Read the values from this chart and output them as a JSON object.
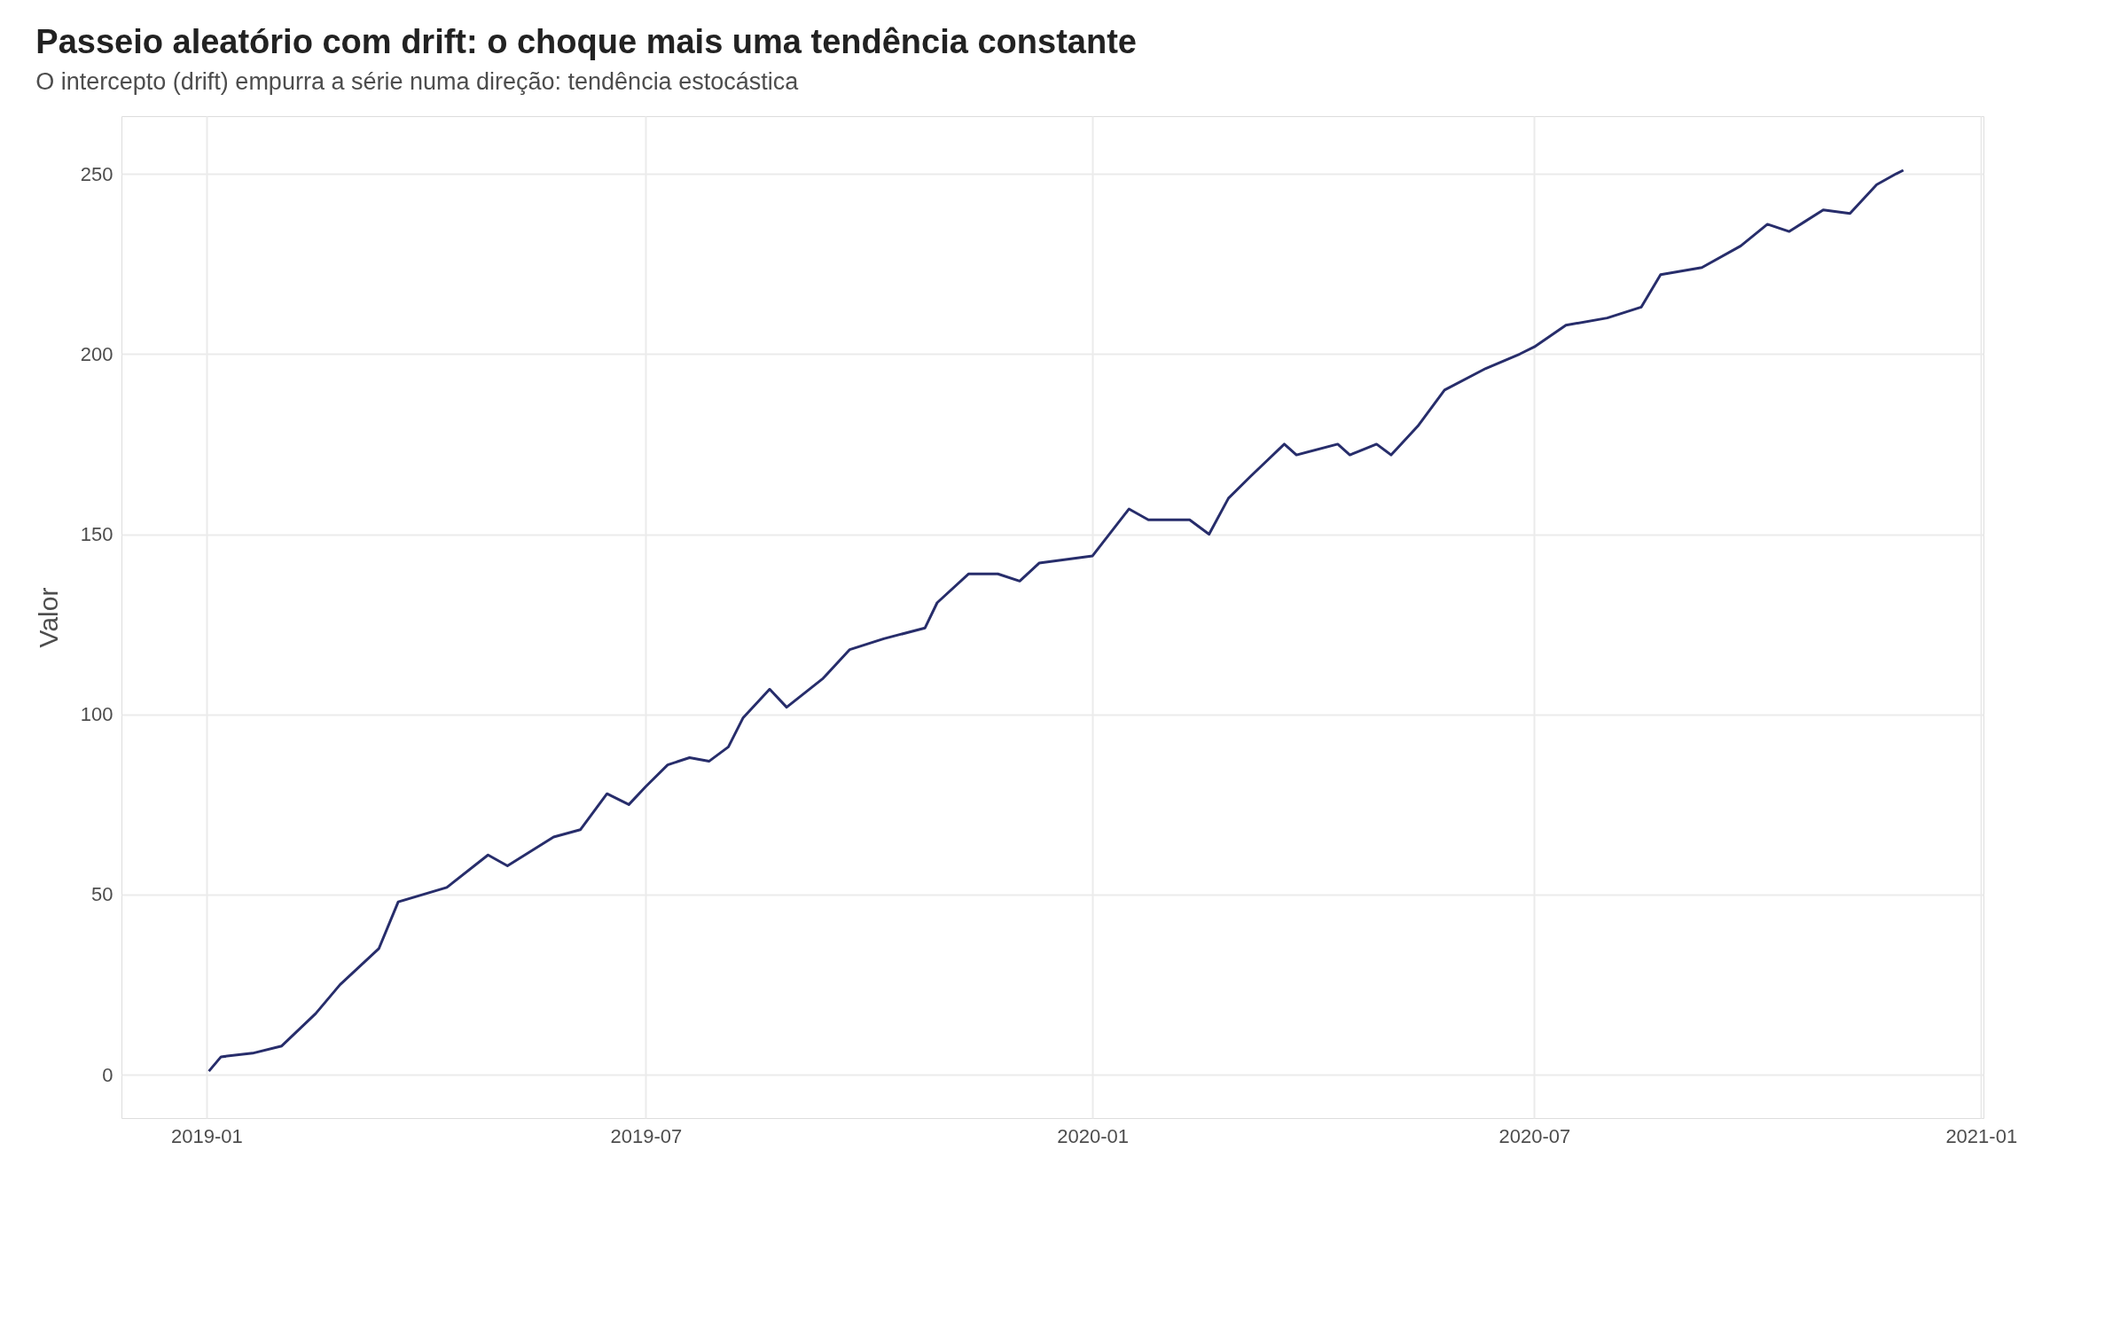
{
  "chart_data": {
    "type": "line",
    "title": "Passeio aleatório com drift: o choque mais uma tendência constante",
    "subtitle": "O intercepto (drift) empurra a série numa direção: tendência estocástica",
    "ylabel": "Valor",
    "x": [
      "2019-01-02",
      "2019-01-07",
      "2019-01-20",
      "2019-02-01",
      "2019-02-15",
      "2019-02-25",
      "2019-03-13",
      "2019-03-21",
      "2019-04-10",
      "2019-04-27",
      "2019-05-05",
      "2019-05-24",
      "2019-06-04",
      "2019-06-15",
      "2019-06-24",
      "2019-07-01",
      "2019-07-10",
      "2019-07-19",
      "2019-07-27",
      "2019-08-04",
      "2019-08-10",
      "2019-08-21",
      "2019-08-28",
      "2019-09-12",
      "2019-09-23",
      "2019-10-07",
      "2019-10-24",
      "2019-10-29",
      "2019-11-11",
      "2019-11-23",
      "2019-12-02",
      "2019-12-10",
      "2020-01-01",
      "2020-01-16",
      "2020-01-24",
      "2020-02-10",
      "2020-02-18",
      "2020-02-26",
      "2020-03-06",
      "2020-03-20",
      "2020-03-25",
      "2020-04-11",
      "2020-04-16",
      "2020-04-27",
      "2020-05-03",
      "2020-05-14",
      "2020-05-25",
      "2020-06-11",
      "2020-06-25",
      "2020-07-01",
      "2020-07-14",
      "2020-07-31",
      "2020-08-14",
      "2020-08-22",
      "2020-09-08",
      "2020-09-24",
      "2020-10-05",
      "2020-10-14",
      "2020-10-28",
      "2020-11-08",
      "2020-11-19",
      "2020-11-27",
      "2020-11-30"
    ],
    "series": [
      {
        "color": "#272d6b",
        "values": [
          1,
          5,
          6,
          8,
          17,
          25,
          35,
          48,
          52,
          61,
          58,
          66,
          68,
          78,
          75,
          80,
          86,
          88,
          87,
          91,
          99,
          107,
          102,
          110,
          118,
          121,
          124,
          131,
          139,
          139,
          137,
          142,
          144,
          157,
          154,
          154,
          150,
          160,
          166,
          175,
          172,
          175,
          172,
          175,
          172,
          180,
          190,
          196,
          200,
          202,
          208,
          210,
          213,
          222,
          224,
          230,
          236,
          234,
          240,
          239,
          247,
          250,
          251
        ]
      }
    ],
    "xlim": [
      "2018-11-27",
      "2021-01-02"
    ],
    "ylim": [
      -12,
      266
    ],
    "xticks": [
      {
        "value": "2019-01-01",
        "label": "2019-01"
      },
      {
        "value": "2019-07-01",
        "label": "2019-07"
      },
      {
        "value": "2020-01-01",
        "label": "2020-01"
      },
      {
        "value": "2020-07-01",
        "label": "2020-07"
      },
      {
        "value": "2021-01-01",
        "label": "2021-01"
      }
    ],
    "yticks": [
      0,
      50,
      100,
      150,
      200,
      250
    ],
    "grid": true,
    "line_style": "solid"
  }
}
